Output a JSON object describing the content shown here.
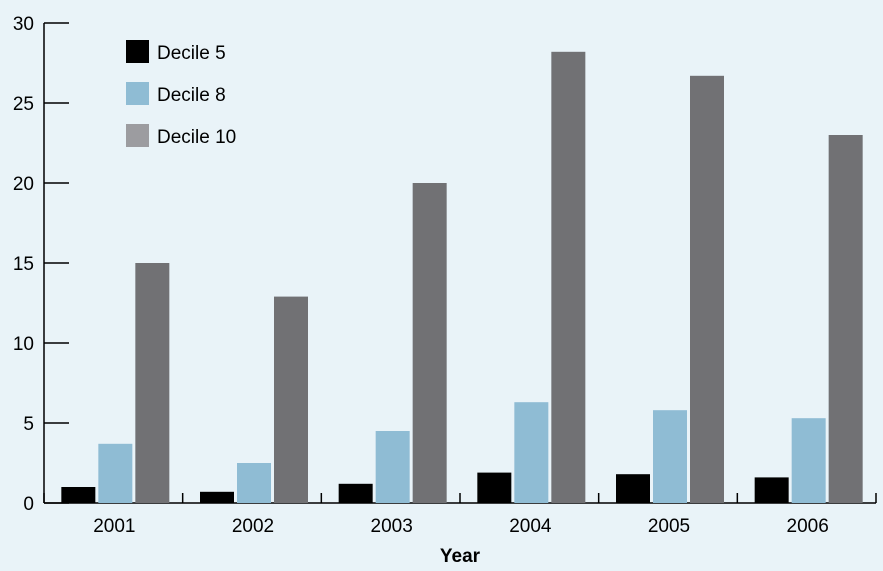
{
  "chart_data": {
    "type": "bar",
    "title": "",
    "xlabel": "Year",
    "ylabel": "",
    "categories": [
      "2001",
      "2002",
      "2003",
      "2004",
      "2005",
      "2006"
    ],
    "series": [
      {
        "name": "Decile 5",
        "values": [
          1.0,
          0.7,
          1.2,
          1.9,
          1.8,
          1.6
        ]
      },
      {
        "name": "Decile 8",
        "values": [
          3.7,
          2.5,
          4.5,
          6.3,
          5.8,
          5.3
        ]
      },
      {
        "name": "Decile 10",
        "values": [
          15.0,
          12.9,
          20.0,
          28.2,
          26.7,
          23.0
        ]
      }
    ],
    "ylim": [
      0,
      30
    ],
    "yticks": [
      0,
      5,
      10,
      15,
      20,
      25,
      30
    ],
    "legend_position": "top-left",
    "grid": false
  },
  "colors": {
    "background": "#e9f3f8",
    "series": [
      "#000000",
      "#8fbcd4",
      "#717174"
    ],
    "legend_swatches": [
      "#000000",
      "#8fbcd4",
      "#9c9ca0"
    ],
    "axis": "#000000"
  }
}
